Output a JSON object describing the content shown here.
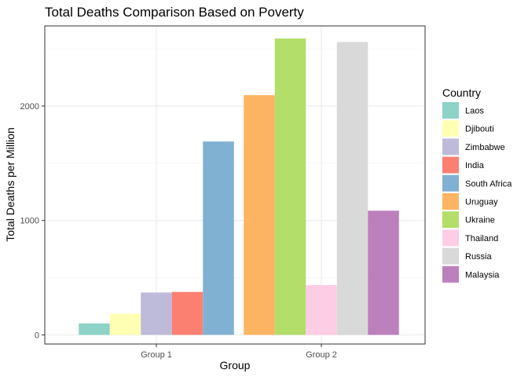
{
  "chart_data": {
    "type": "bar",
    "title": "Total Deaths Comparison Based on Poverty",
    "xlabel": "Group",
    "ylabel": "Total Deaths per Million",
    "ylim": [
      -80,
      2700
    ],
    "yticks": [
      0,
      1000,
      2000
    ],
    "grid": true,
    "legend": {
      "title": "Country",
      "position": "right"
    },
    "groups": [
      {
        "label": "Group 1",
        "bars": [
          {
            "country": "Laos",
            "value": 100
          },
          {
            "country": "Djibouti",
            "value": 185
          },
          {
            "country": "Zimbabwe",
            "value": 370
          },
          {
            "country": "India",
            "value": 375
          },
          {
            "country": "South Africa",
            "value": 1690
          }
        ]
      },
      {
        "label": "Group 2",
        "bars": [
          {
            "country": "Uruguay",
            "value": 2095
          },
          {
            "country": "Ukraine",
            "value": 2590
          },
          {
            "country": "Thailand",
            "value": 435
          },
          {
            "country": "Russia",
            "value": 2560
          },
          {
            "country": "Malaysia",
            "value": 1085
          }
        ]
      }
    ],
    "series": [
      {
        "name": "Laos",
        "color": "#8dd3c7"
      },
      {
        "name": "Djibouti",
        "color": "#ffffb3"
      },
      {
        "name": "Zimbabwe",
        "color": "#bebada"
      },
      {
        "name": "India",
        "color": "#fb8072"
      },
      {
        "name": "South Africa",
        "color": "#80b1d3"
      },
      {
        "name": "Uruguay",
        "color": "#fdb462"
      },
      {
        "name": "Ukraine",
        "color": "#b3de69"
      },
      {
        "name": "Thailand",
        "color": "#fccde5"
      },
      {
        "name": "Russia",
        "color": "#d9d9d9"
      },
      {
        "name": "Malaysia",
        "color": "#bc80bd"
      }
    ]
  }
}
